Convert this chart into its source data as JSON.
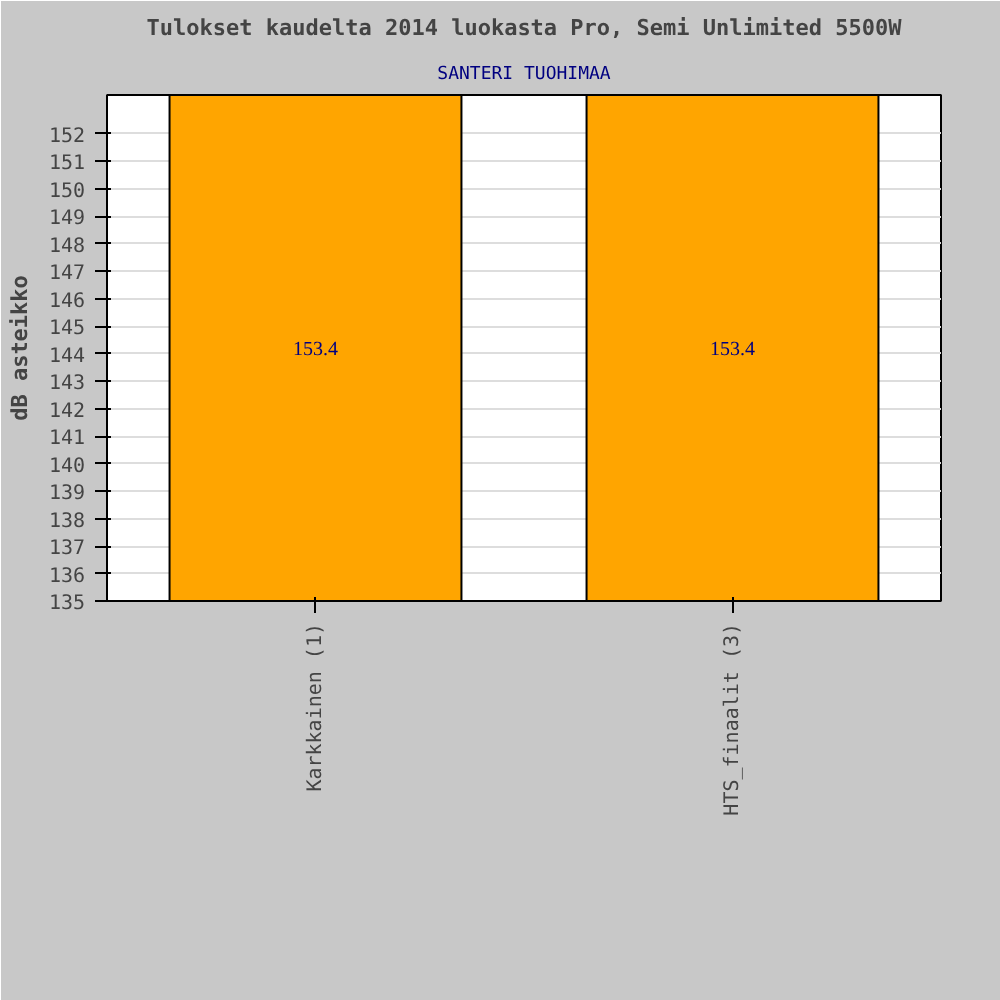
{
  "chart_data": {
    "type": "bar",
    "title": "Tulokset kaudelta 2014 luokasta Pro, Semi Unlimited 5500W",
    "subtitle": "SANTERI TUOHIMAA",
    "ylabel": "dB asteikko",
    "categories": [
      "Karkkainen (1)",
      "HTS_finaalit (3)"
    ],
    "values": [
      153.4,
      153.4
    ],
    "color": "#ffa500",
    "data_labels": true,
    "ylim": [
      135,
      153.4
    ],
    "yticks": [
      135,
      136,
      137,
      138,
      139,
      140,
      141,
      142,
      143,
      144,
      145,
      146,
      147,
      148,
      149,
      150,
      151,
      152
    ],
    "grid": "y"
  }
}
